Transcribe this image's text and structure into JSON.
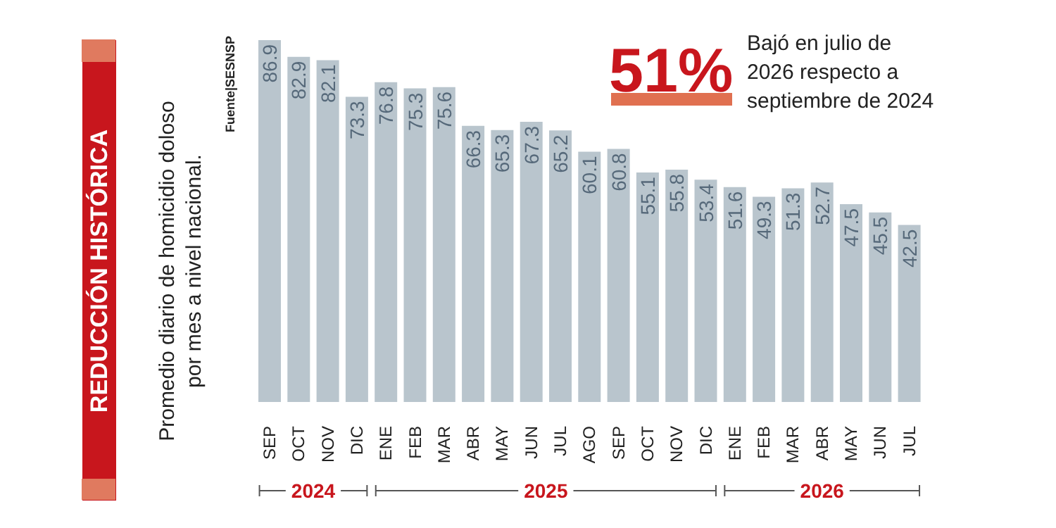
{
  "chart_data": {
    "type": "bar",
    "title": "REDUCCIÓN HISTÓRICA",
    "subtitle": "Promedio diario de homicidio doloso\npor mes a nivel nacional.",
    "categories": [
      "SEP",
      "OCT",
      "NOV",
      "DIC",
      "ENE",
      "FEB",
      "MAR",
      "ABR",
      "MAY",
      "JUN",
      "JUL",
      "AGO",
      "SEP",
      "OCT",
      "NOV",
      "DIC",
      "ENE",
      "FEB",
      "MAR",
      "ABR",
      "MAY",
      "JUN",
      "JUL"
    ],
    "values": [
      86.9,
      82.9,
      82.1,
      73.3,
      76.8,
      75.3,
      75.6,
      66.3,
      65.3,
      67.3,
      65.2,
      60.1,
      60.8,
      55.1,
      55.8,
      53.4,
      51.6,
      49.3,
      51.3,
      52.7,
      47.5,
      45.5,
      42.5
    ],
    "color": "#b9c5cd",
    "data_labels": true,
    "annotations": [
      "Fuente|SESNSP",
      "51%",
      "Bajó en julio de\n2026 respecto a\nseptiembre de 2024",
      "2024",
      "2025",
      "2026"
    ]
  }
}
